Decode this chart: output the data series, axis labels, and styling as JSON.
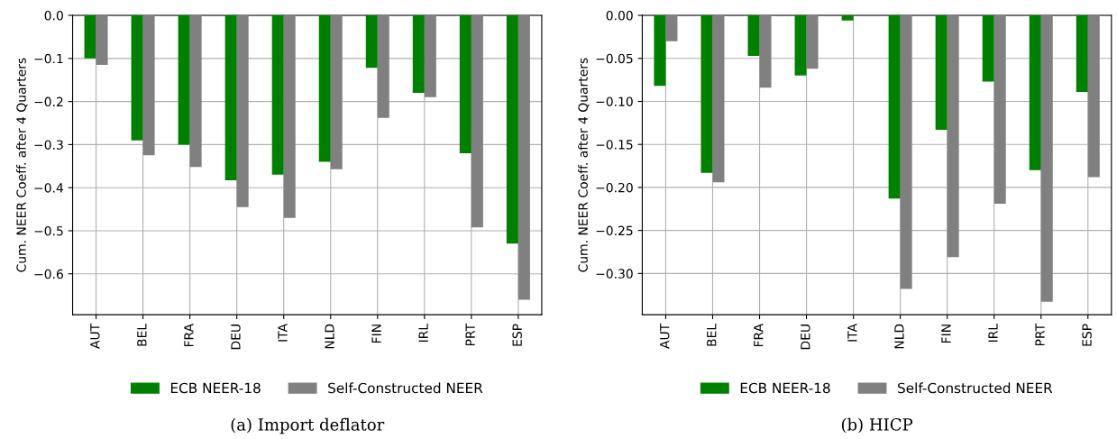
{
  "chart_data": [
    {
      "type": "bar",
      "categories": [
        "AUT",
        "BEL",
        "FRA",
        "DEU",
        "ITA",
        "NLD",
        "FIN",
        "IRL",
        "PRT",
        "ESP"
      ],
      "ylabel": "Cum. NEER Coeff. after 4 Quarters",
      "ylim": [
        -0.695,
        0
      ],
      "yticks": [
        {
          "value": 0,
          "label": "0.0"
        },
        {
          "value": -0.1,
          "label": "−0.1"
        },
        {
          "value": -0.2,
          "label": "−0.2"
        },
        {
          "value": -0.3,
          "label": "−0.3"
        },
        {
          "value": -0.4,
          "label": "−0.4"
        },
        {
          "value": -0.5,
          "label": "−0.5"
        },
        {
          "value": -0.6,
          "label": "−0.6"
        }
      ],
      "series": [
        {
          "name": "ECB NEER-18",
          "color": "#008000",
          "values": [
            -0.1,
            -0.29,
            -0.3,
            -0.383,
            -0.37,
            -0.34,
            -0.122,
            -0.18,
            -0.32,
            -0.53
          ]
        },
        {
          "name": "Self-Constructed NEER",
          "color": "#808080",
          "values": [
            -0.115,
            -0.325,
            -0.352,
            -0.445,
            -0.47,
            -0.357,
            -0.238,
            -0.19,
            -0.492,
            -0.66
          ]
        }
      ],
      "grid": true,
      "legend": "bottom",
      "annotations": [
        "(a) Import deflator"
      ]
    },
    {
      "type": "bar",
      "categories": [
        "AUT",
        "BEL",
        "FRA",
        "DEU",
        "ITA",
        "NLD",
        "FIN",
        "IRL",
        "PRT",
        "ESP"
      ],
      "ylabel": "Cum. NEER Coeff. after 4 Quarters",
      "ylim": [
        -0.348,
        0
      ],
      "yticks": [
        {
          "value": 0,
          "label": "0.00"
        },
        {
          "value": -0.05,
          "label": "−0.05"
        },
        {
          "value": -0.1,
          "label": "−0.10"
        },
        {
          "value": -0.15,
          "label": "−0.15"
        },
        {
          "value": -0.2,
          "label": "−0.20"
        },
        {
          "value": -0.25,
          "label": "−0.25"
        },
        {
          "value": -0.3,
          "label": "−0.30"
        }
      ],
      "series": [
        {
          "name": "ECB NEER-18",
          "color": "#008000",
          "values": [
            -0.082,
            -0.183,
            -0.047,
            -0.07,
            -0.006,
            -0.213,
            -0.133,
            -0.077,
            -0.18,
            -0.089
          ]
        },
        {
          "name": "Self-Constructed NEER",
          "color": "#808080",
          "values": [
            -0.03,
            -0.194,
            -0.084,
            -0.062,
            null,
            -0.318,
            -0.281,
            -0.219,
            -0.333,
            -0.188
          ]
        }
      ],
      "grid": true,
      "legend": "bottom",
      "annotations": [
        "(b) HICP"
      ]
    }
  ]
}
